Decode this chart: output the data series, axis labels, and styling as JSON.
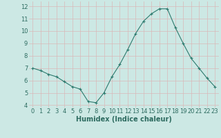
{
  "x": [
    0,
    1,
    2,
    3,
    4,
    5,
    6,
    7,
    8,
    9,
    10,
    11,
    12,
    13,
    14,
    15,
    16,
    17,
    18,
    19,
    20,
    21,
    22,
    23
  ],
  "y": [
    7.0,
    6.8,
    6.5,
    6.3,
    5.9,
    5.5,
    5.3,
    4.3,
    4.2,
    5.0,
    6.3,
    7.3,
    8.5,
    9.8,
    10.8,
    11.4,
    11.8,
    11.8,
    10.3,
    9.0,
    7.8,
    7.0,
    6.2,
    5.5
  ],
  "xlabel": "Humidex (Indice chaleur)",
  "ylim": [
    3.8,
    12.4
  ],
  "xlim": [
    -0.5,
    23.5
  ],
  "yticks": [
    4,
    5,
    6,
    7,
    8,
    9,
    10,
    11,
    12
  ],
  "xticks": [
    0,
    1,
    2,
    3,
    4,
    5,
    6,
    7,
    8,
    9,
    10,
    11,
    12,
    13,
    14,
    15,
    16,
    17,
    18,
    19,
    20,
    21,
    22,
    23
  ],
  "line_color": "#2d7a6e",
  "marker": "+",
  "bg_color": "#cce8e4",
  "grid_color": "#d9b8b8",
  "tick_fontsize": 6,
  "xlabel_fontsize": 7
}
